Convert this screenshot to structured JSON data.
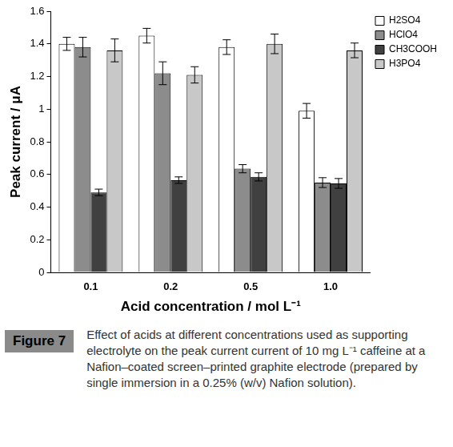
{
  "chart_data": {
    "type": "bar",
    "categories": [
      "0.1",
      "0.2",
      "0.5",
      "1.0"
    ],
    "series": [
      {
        "name": "H2SO4",
        "color": "#ffffff",
        "values": [
          1.4,
          1.45,
          1.38,
          0.99
        ],
        "errors": [
          0.04,
          0.045,
          0.045,
          0.045
        ]
      },
      {
        "name": "HClO4",
        "color": "#8c8c8c",
        "values": [
          1.38,
          1.22,
          0.635,
          0.55
        ],
        "errors": [
          0.06,
          0.07,
          0.025,
          0.03
        ]
      },
      {
        "name": "CH3COOH",
        "color": "#404040",
        "values": [
          0.49,
          0.565,
          0.585,
          0.545
        ],
        "errors": [
          0.02,
          0.02,
          0.025,
          0.03
        ]
      },
      {
        "name": "H3PO4",
        "color": "#c8c8c8",
        "values": [
          1.36,
          1.21,
          1.4,
          1.36
        ],
        "errors": [
          0.07,
          0.05,
          0.06,
          0.045
        ]
      }
    ],
    "x_label": "Acid concentration / mol L⁻¹",
    "y_label": "Peak current / μA",
    "ylim": [
      0,
      1.6
    ],
    "yticks": [
      0,
      0.2,
      0.4,
      0.6,
      0.8,
      1,
      1.2,
      1.4,
      1.6
    ],
    "grid": false,
    "legend": "upper right",
    "figure_label": "Figure 7",
    "caption": "Effect of acids at different concentrations used as supporting electrolyte on the peak current current of 10 mg L⁻¹ caffeine at a Nafion–coated screen–printed graphite electrode (prepared by single immersion in a 0.25% (w/v) Nafion solution)."
  }
}
